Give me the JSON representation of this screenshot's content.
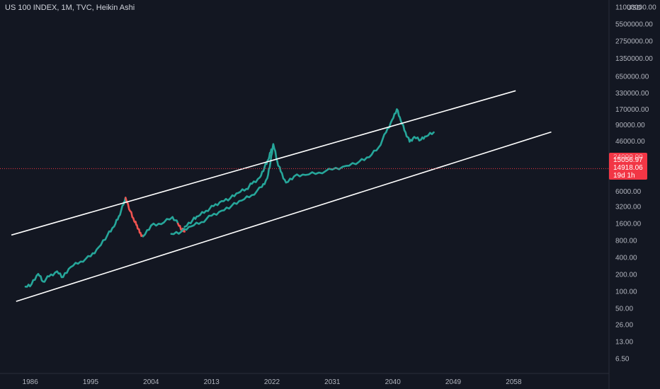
{
  "header": {
    "title": "US 100 INDEX, 1M, TVC, Heikin Ashi"
  },
  "chart_data": {
    "type": "line",
    "title": "US 100 INDEX, 1M, TVC, Heikin Ashi",
    "y_scale": "log",
    "y_axis_unit": "USD",
    "y_ticks": [
      6.5,
      13,
      26,
      50,
      100,
      200,
      400,
      800,
      1600,
      3200,
      6000,
      46000,
      90000,
      170000,
      330000,
      650000,
      1350000,
      2750000,
      5500000,
      11000000
    ],
    "y_tick_labels": [
      "6.50",
      "13.00",
      "26.00",
      "50.00",
      "100.00",
      "200.00",
      "400.00",
      "800.00",
      "1600.00",
      "3200.00",
      "6000.00",
      "46000.00",
      "90000.00",
      "170000.00",
      "330000.00",
      "650000.00",
      "1350000.00",
      "2750000.00",
      "5500000.00",
      "11000000.00"
    ],
    "x_ticks": [
      1986,
      1995,
      2004,
      2013,
      2022,
      2031,
      2040,
      2049,
      2058
    ],
    "x_tick_labels": [
      "1986",
      "1995",
      "2004",
      "2013",
      "2022",
      "2031",
      "2040",
      "2049",
      "2058"
    ],
    "xlim": [
      1981.5,
      2072.2
    ],
    "ylim": [
      3.54,
      14600000
    ],
    "grid": false,
    "price_labels": {
      "upper_partial": "24000.00",
      "upper_value": 24000,
      "current": "15056.97",
      "current_value": 15056.97,
      "second": "14918.06",
      "second_value": 14918.06,
      "countdown": "19d 1h",
      "color": "#f23645",
      "hline_color": "#f23645"
    },
    "channel_lines": [
      {
        "name": "",
        "x": [
          1983.2,
          2058.3
        ],
        "y": [
          1002,
          360000
        ],
        "color": "#ffffff"
      },
      {
        "name": "",
        "x": [
          1983.9,
          2063.6
        ],
        "y": [
          67,
          67000
        ],
        "color": "#ffffff"
      }
    ],
    "series": [
      {
        "name": "",
        "color": "#26a69a",
        "down_color": "#ef5350",
        "x": [
          1985.3,
          1986.2,
          1987.2,
          1987.9,
          1988.8,
          1990.0,
          1990.9,
          1992.0,
          1993.5,
          1995.0,
          1996.2,
          1997.5,
          1998.5,
          1999.2,
          1999.9,
          2000.2
        ],
        "y": [
          122,
          135,
          205,
          150,
          185,
          228,
          180,
          270,
          340,
          420,
          610,
          1000,
          1420,
          2150,
          3500,
          4600
        ]
      },
      {
        "name": "",
        "color": "#ef5350",
        "x": [
          2000.2,
          2000.9,
          2001.5,
          2001.9,
          2002.3,
          2002.8
        ],
        "y": [
          4600,
          2650,
          1750,
          1500,
          1100,
          950
        ]
      },
      {
        "name": "",
        "color": "#26a69a",
        "x": [
          2002.8,
          2004.0,
          2005.5,
          2007.2,
          2008.0
        ],
        "y": [
          950,
          1480,
          1560,
          2100,
          1600
        ]
      },
      {
        "name": "",
        "color": "#ef5350",
        "x": [
          2008.0,
          2008.6,
          2009.0
        ],
        "y": [
          1600,
          1250,
          1150
        ]
      },
      {
        "name": "",
        "color": "#26a69a",
        "x": [
          2009.0,
          2010.2,
          2011.0,
          2012.2,
          2013.3,
          2014.5,
          2015.8,
          2017.0,
          2018.2,
          2019.0,
          2020.2,
          2020.9,
          2021.5,
          2021.9
        ],
        "y": [
          1400,
          1850,
          2150,
          2700,
          3250,
          4000,
          4500,
          5600,
          6600,
          8100,
          10500,
          16000,
          22000,
          33000
        ]
      },
      {
        "name": "",
        "color": "#26a69a",
        "x": [
          2007.0,
          2008.5,
          2010.0,
          2011.5,
          2013.0,
          2014.5,
          2016.0,
          2017.5,
          2019.0,
          2020.5,
          2021.3,
          2021.8,
          2022.2,
          2022.8,
          2023.3,
          2024.1,
          2025.3,
          2027.0,
          2029.0,
          2031.0,
          2033.0,
          2035.0,
          2036.5,
          2037.9,
          2039.0,
          2039.9,
          2040.6,
          2041.2,
          2041.9,
          2042.5,
          2043.2,
          2044.2,
          2045.0,
          2046.1
        ],
        "y": [
          1050,
          1150,
          1430,
          1700,
          2200,
          2700,
          3300,
          4100,
          5100,
          7100,
          10200,
          20000,
          41000,
          20000,
          13500,
          8500,
          11000,
          11600,
          12800,
          14500,
          16800,
          20000,
          24000,
          36000,
          66000,
          110000,
          170000,
          105000,
          66000,
          45000,
          55000,
          49000,
          56000,
          66000
        ]
      }
    ]
  }
}
